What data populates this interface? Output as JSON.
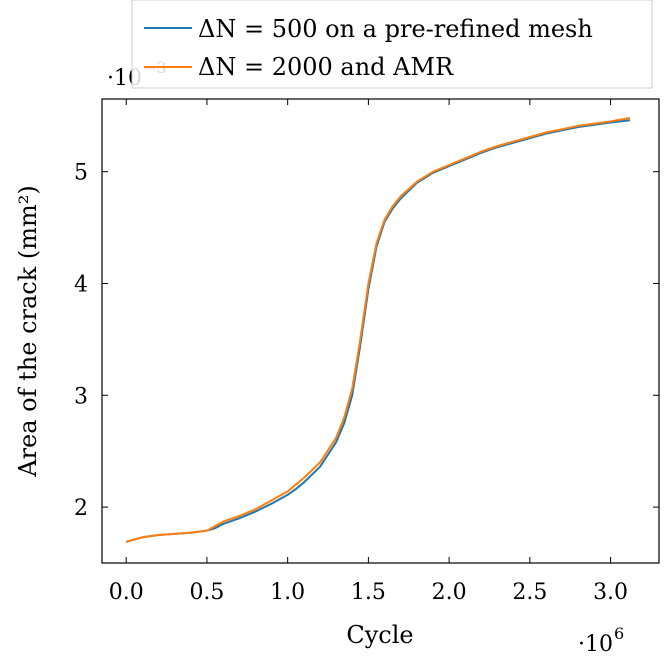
{
  "chart_data": {
    "type": "line",
    "title": "",
    "xlabel": "Cycle",
    "ylabel": "Area of the crack (mm²)",
    "x_multiplier_label": "·10",
    "x_multiplier_exp": "6",
    "y_multiplier_label": "·10",
    "y_multiplier_exp": "−3",
    "xlim": [
      -0.15,
      3.3
    ],
    "ylim": [
      1.5,
      5.65
    ],
    "xticks": [
      0.0,
      0.5,
      1.0,
      1.5,
      2.0,
      2.5,
      3.0
    ],
    "xtick_labels": [
      "0.0",
      "0.5",
      "1.0",
      "1.5",
      "2.0",
      "2.5",
      "3.0"
    ],
    "yticks": [
      2,
      3,
      4,
      5
    ],
    "ytick_labels": [
      "2",
      "3",
      "4",
      "5"
    ],
    "grid": false,
    "legend_position": "top-center, above the plot",
    "series": [
      {
        "name": "ΔN = 500 on a pre-refined mesh",
        "color": "#1f77b4",
        "x": [
          0.0,
          0.1,
          0.2,
          0.3,
          0.4,
          0.5,
          0.55,
          0.6,
          0.7,
          0.8,
          0.9,
          1.0,
          1.05,
          1.1,
          1.2,
          1.3,
          1.35,
          1.4,
          1.45,
          1.5,
          1.55,
          1.6,
          1.65,
          1.7,
          1.8,
          1.9,
          2.0,
          2.1,
          2.2,
          2.3,
          2.4,
          2.5,
          2.6,
          2.7,
          2.8,
          2.9,
          3.0,
          3.12
        ],
        "y": [
          1.69,
          1.73,
          1.75,
          1.76,
          1.77,
          1.79,
          1.81,
          1.85,
          1.9,
          1.96,
          2.03,
          2.11,
          2.16,
          2.22,
          2.36,
          2.58,
          2.75,
          3.0,
          3.45,
          3.95,
          4.33,
          4.55,
          4.67,
          4.76,
          4.9,
          4.99,
          5.05,
          5.11,
          5.17,
          5.22,
          5.26,
          5.3,
          5.34,
          5.37,
          5.4,
          5.42,
          5.44,
          5.46
        ]
      },
      {
        "name": "ΔN = 2000 and AMR",
        "color": "#ff7f0e",
        "x": [
          0.0,
          0.1,
          0.2,
          0.3,
          0.4,
          0.5,
          0.55,
          0.6,
          0.7,
          0.8,
          0.9,
          1.0,
          1.05,
          1.1,
          1.2,
          1.3,
          1.35,
          1.4,
          1.45,
          1.5,
          1.55,
          1.6,
          1.65,
          1.7,
          1.8,
          1.9,
          2.0,
          2.1,
          2.2,
          2.3,
          2.4,
          2.5,
          2.6,
          2.7,
          2.8,
          2.9,
          3.0,
          3.12
        ],
        "y": [
          1.69,
          1.73,
          1.75,
          1.76,
          1.77,
          1.79,
          1.83,
          1.87,
          1.92,
          1.98,
          2.06,
          2.14,
          2.2,
          2.26,
          2.4,
          2.62,
          2.8,
          3.06,
          3.5,
          4.0,
          4.36,
          4.57,
          4.69,
          4.78,
          4.91,
          5.0,
          5.06,
          5.12,
          5.18,
          5.23,
          5.27,
          5.31,
          5.35,
          5.38,
          5.41,
          5.43,
          5.45,
          5.48
        ]
      }
    ]
  }
}
